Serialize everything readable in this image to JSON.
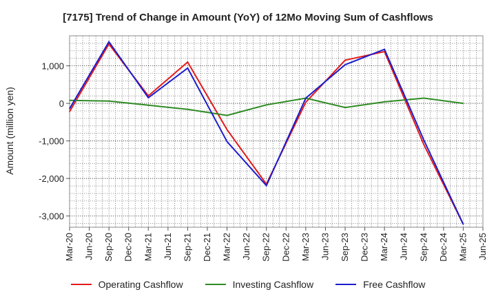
{
  "chart_data": {
    "type": "line",
    "title": "[7175]  Trend of Change in Amount (YoY) of 12Mo Moving Sum of Cashflows",
    "xlabel": "",
    "ylabel": "Amount (million yen)",
    "ylim": [
      -3300,
      1800
    ],
    "yticks": [
      1000,
      0,
      -1000,
      -2000,
      -3000
    ],
    "ytick_labels": [
      "1,000",
      "0",
      "-1,000",
      "-2,000",
      "-3,000"
    ],
    "categories": [
      "Mar-20",
      "Jun-20",
      "Sep-20",
      "Dec-20",
      "Mar-21",
      "Jun-21",
      "Sep-21",
      "Dec-21",
      "Mar-22",
      "Jun-22",
      "Sep-22",
      "Dec-22",
      "Mar-23",
      "Jun-23",
      "Sep-23",
      "Dec-23",
      "Mar-24",
      "Jun-24",
      "Sep-24",
      "Dec-24",
      "Mar-25",
      "Jun-25"
    ],
    "series": [
      {
        "name": "Operating Cashflow",
        "color": "#e31a1c",
        "values": [
          -220,
          null,
          1580,
          null,
          200,
          null,
          1100,
          null,
          -700,
          null,
          -2150,
          null,
          30,
          null,
          1150,
          null,
          1380,
          null,
          -1100,
          null,
          -3220,
          null
        ]
      },
      {
        "name": "Investing Cashflow",
        "color": "#2e8b22",
        "values": [
          80,
          null,
          60,
          null,
          -50,
          null,
          -160,
          null,
          -320,
          null,
          -40,
          null,
          140,
          null,
          -110,
          null,
          40,
          null,
          140,
          null,
          0,
          null
        ]
      },
      {
        "name": "Free Cashflow",
        "color": "#1c1ccc",
        "values": [
          -140,
          null,
          1640,
          null,
          150,
          null,
          940,
          null,
          -1020,
          null,
          -2190,
          null,
          140,
          null,
          1030,
          null,
          1440,
          null,
          -980,
          null,
          -3220,
          null
        ]
      }
    ],
    "grid": true,
    "legend_position": "bottom-center"
  }
}
